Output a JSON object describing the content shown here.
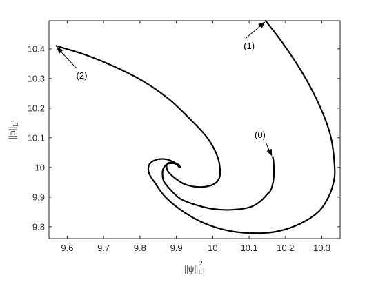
{
  "chart_data": {
    "type": "line",
    "title": "",
    "xlabel": {
      "base": "||ψ||",
      "sup": "2",
      "sub": "L²",
      "sub_base": "L",
      "sub_sup": "2"
    },
    "ylabel": {
      "base": "||n||",
      "sub": "L¹",
      "sub_base": "L",
      "sub_sup": "1"
    },
    "xlim": [
      9.55,
      10.35
    ],
    "ylim": [
      9.76,
      10.495
    ],
    "xticks": [
      9.6,
      9.7,
      9.8,
      9.9,
      10.0,
      10.1,
      10.2,
      10.3
    ],
    "xtick_labels": [
      "9.6",
      "9.7",
      "9.8",
      "9.9",
      "10",
      "10.1",
      "10.2",
      "10.3"
    ],
    "yticks": [
      9.8,
      9.9,
      10.0,
      10.1,
      10.2,
      10.3,
      10.4
    ],
    "ytick_labels": [
      "9.8",
      "9.9",
      "10",
      "10.1",
      "10.2",
      "10.3",
      "10.4"
    ],
    "grid": false,
    "line_color": "#000000",
    "series": [
      {
        "name": "",
        "x": [
          10.165,
          10.167,
          10.168,
          10.167,
          10.164,
          10.158,
          10.15,
          10.13,
          10.1,
          10.05,
          10.0,
          9.95,
          9.91,
          9.88,
          9.865,
          9.862,
          9.866,
          9.876,
          9.89,
          9.905,
          9.91
        ],
        "y": [
          10.036,
          10.02,
          9.99,
          9.96,
          9.94,
          9.92,
          9.91,
          9.885,
          9.865,
          9.857,
          9.86,
          9.875,
          9.895,
          9.93,
          9.955,
          9.985,
          10.0,
          10.012,
          10.014,
          10.01,
          10.002
        ]
      },
      {
        "name": "",
        "x": [
          10.145,
          10.18,
          10.22,
          10.26,
          10.3,
          10.325,
          10.335,
          10.332,
          10.318,
          10.29,
          10.24,
          10.18,
          10.12,
          10.05,
          9.98,
          9.92,
          9.87,
          9.84,
          9.825,
          9.824,
          9.834,
          9.852,
          9.874,
          9.893,
          9.905,
          9.91
        ],
        "y": [
          10.495,
          10.44,
          10.37,
          10.29,
          10.19,
          10.1,
          10.0,
          9.95,
          9.9,
          9.85,
          9.81,
          9.785,
          9.778,
          9.785,
          9.81,
          9.85,
          9.9,
          9.95,
          9.98,
          10.005,
          10.02,
          10.028,
          10.027,
          10.018,
          10.008,
          10.0
        ]
      },
      {
        "name": "",
        "x": [
          9.57,
          9.65,
          9.73,
          9.81,
          9.88,
          9.94,
          9.985,
          10.012,
          10.02,
          10.018,
          10.005,
          9.98,
          9.95,
          9.92,
          9.895,
          9.878,
          9.873,
          9.878,
          9.89,
          9.902,
          9.908
        ],
        "y": [
          10.41,
          10.38,
          10.34,
          10.29,
          10.23,
          10.16,
          10.1,
          10.04,
          9.995,
          9.965,
          9.945,
          9.935,
          9.935,
          9.945,
          9.965,
          9.985,
          10.003,
          10.015,
          10.016,
          10.008,
          10.0
        ]
      }
    ],
    "annotations": [
      {
        "text": "(0)",
        "text_x": 10.13,
        "text_y": 10.1,
        "arrow_from_x": 10.145,
        "arrow_from_y": 10.085,
        "arrow_to_x": 10.162,
        "arrow_to_y": 10.04
      },
      {
        "text": "(1)",
        "text_x": 10.1,
        "text_y": 10.4,
        "arrow_from_x": 10.09,
        "arrow_from_y": 10.435,
        "arrow_to_x": 10.143,
        "arrow_to_y": 10.49
      },
      {
        "text": "(2)",
        "text_x": 9.64,
        "text_y": 10.3,
        "arrow_from_x": 9.625,
        "arrow_from_y": 10.335,
        "arrow_to_x": 9.572,
        "arrow_to_y": 10.405
      }
    ]
  }
}
